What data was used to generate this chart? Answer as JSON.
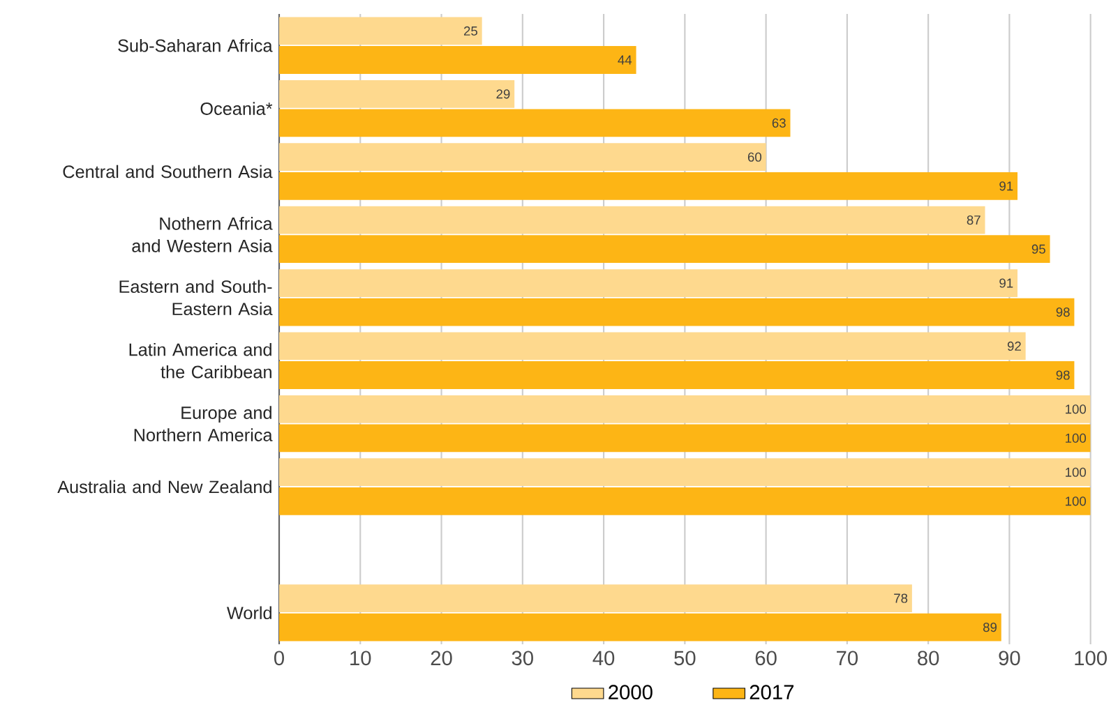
{
  "chart_data": {
    "type": "bar",
    "orientation": "horizontal",
    "categories": [
      "Sub-Saharan Africa",
      "Oceania*",
      "Central and Southern Asia",
      "Nothern Africa and Western Asia",
      "Eastern and South-Eastern Asia",
      "Latin America and the Caribbean",
      "Europe and Northern America",
      "Australia and New Zealand",
      null,
      "World"
    ],
    "series": [
      {
        "name": "2000",
        "color": "#fed98e",
        "values": [
          25,
          29,
          60,
          87,
          91,
          92,
          100,
          100,
          null,
          78
        ]
      },
      {
        "name": "2017",
        "color": "#fdb515",
        "values": [
          44,
          63,
          91,
          95,
          98,
          98,
          100,
          100,
          null,
          89
        ]
      }
    ],
    "xlim": [
      0,
      100
    ],
    "xticks": [
      0,
      10,
      20,
      30,
      40,
      50,
      60,
      70,
      80,
      90,
      100
    ],
    "grid": "x",
    "legend": "bottom",
    "data_labels": true
  }
}
